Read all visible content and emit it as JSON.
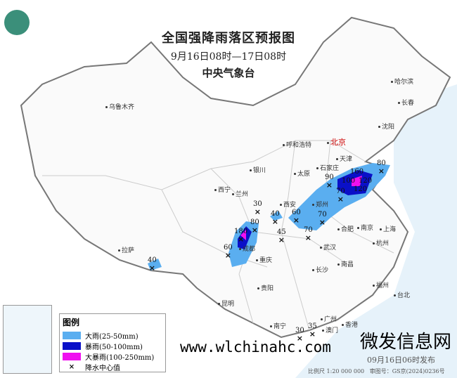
{
  "header": {
    "title": "全国强降雨落区预报图",
    "period": "9月16日08时—17日08时",
    "agency": "中央气象台"
  },
  "cities": [
    {
      "name": "乌鲁木齐",
      "capital": false
    },
    {
      "name": "拉萨",
      "capital": false
    },
    {
      "name": "西宁",
      "capital": false
    },
    {
      "name": "兰州",
      "capital": false
    },
    {
      "name": "银川",
      "capital": false
    },
    {
      "name": "呼和浩特",
      "capital": false
    },
    {
      "name": "北京",
      "capital": true
    },
    {
      "name": "天津",
      "capital": false
    },
    {
      "name": "石家庄",
      "capital": false
    },
    {
      "name": "太原",
      "capital": false
    },
    {
      "name": "郑州",
      "capital": false
    },
    {
      "name": "西安",
      "capital": false
    },
    {
      "name": "合肥",
      "capital": false
    },
    {
      "name": "南京",
      "capital": false
    },
    {
      "name": "上海",
      "capital": false
    },
    {
      "name": "杭州",
      "capital": false
    },
    {
      "name": "武汉",
      "capital": false
    },
    {
      "name": "长沙",
      "capital": false
    },
    {
      "name": "南昌",
      "capital": false
    },
    {
      "name": "福州",
      "capital": false
    },
    {
      "name": "台北",
      "capital": false
    },
    {
      "name": "成都",
      "capital": false
    },
    {
      "name": "重庆",
      "capital": false
    },
    {
      "name": "贵阳",
      "capital": false
    },
    {
      "name": "昆明",
      "capital": false
    },
    {
      "name": "南宁",
      "capital": false
    },
    {
      "name": "广州",
      "capital": false
    },
    {
      "name": "澳门",
      "capital": false
    },
    {
      "name": "香港",
      "capital": false
    },
    {
      "name": "沈阳",
      "capital": false
    },
    {
      "name": "长春",
      "capital": false
    },
    {
      "name": "哈尔滨",
      "capital": false
    }
  ],
  "rain_centers": [
    "40",
    "30",
    "40",
    "45",
    "60",
    "70",
    "70",
    "80",
    "180",
    "60",
    "90",
    "70",
    "100",
    "120",
    "160",
    "120",
    "80",
    "30",
    "35"
  ],
  "legend": {
    "title": "图例",
    "items": [
      {
        "label": "大雨(25-50mm)",
        "color": "#5aaef0"
      },
      {
        "label": "暴雨(50-100mm)",
        "color": "#0a10c8"
      },
      {
        "label": "大暴雨(100-250mm)",
        "color": "#f010f0"
      },
      {
        "label": "降水中心值",
        "symbol": "×"
      }
    ]
  },
  "footer": {
    "published": "09月16日06时发布",
    "scale": "比例尺 1:20 000 000",
    "map_number": "审图号：GS京(2024)0236号"
  },
  "watermark": {
    "url": "www.wlchinahc.com",
    "text": "微发信息网"
  }
}
